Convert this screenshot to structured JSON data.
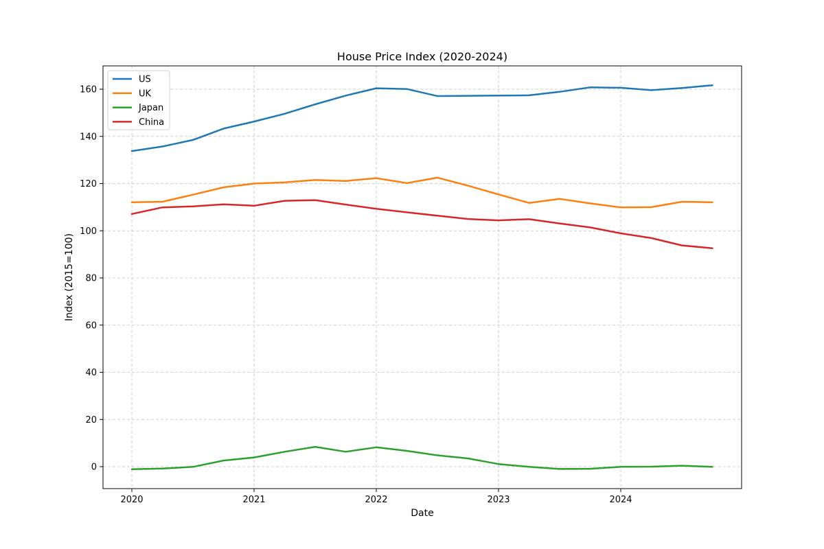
{
  "chart_data": {
    "type": "line",
    "title": "House Price Index (2020-2024)",
    "xlabel": "Date",
    "ylabel": "Index (2015=100)",
    "x": [
      "2020-Q1",
      "2020-Q2",
      "2020-Q3",
      "2020-Q4",
      "2021-Q1",
      "2021-Q2",
      "2021-Q3",
      "2021-Q4",
      "2022-Q1",
      "2022-Q2",
      "2022-Q3",
      "2022-Q4",
      "2023-Q1",
      "2023-Q2",
      "2023-Q3",
      "2023-Q4",
      "2024-Q1",
      "2024-Q2",
      "2024-Q3",
      "2024-Q4"
    ],
    "xticks": [
      "2020",
      "2021",
      "2022",
      "2023",
      "2024"
    ],
    "xlim": [
      "2019-Q4 (approx)",
      "2025-Q1 (approx)"
    ],
    "ylim": [
      -9,
      170
    ],
    "yticks": [
      0,
      20,
      40,
      60,
      80,
      100,
      120,
      140,
      160
    ],
    "grid": true,
    "legend_position": "top-left",
    "series": [
      {
        "name": "US",
        "color": "#1f77b4",
        "values": [
          133.8,
          135.7,
          138.5,
          143.3,
          146.3,
          149.6,
          153.6,
          157.3,
          160.4,
          160.1,
          157.1,
          157.2,
          157.3,
          157.4,
          158.9,
          160.8,
          160.6,
          159.6,
          160.5,
          161.7
        ]
      },
      {
        "name": "UK",
        "color": "#ff7f0e",
        "values": [
          112.1,
          112.3,
          115.3,
          118.4,
          120.0,
          120.5,
          121.5,
          121.1,
          122.3,
          120.2,
          122.5,
          119.1,
          115.4,
          111.8,
          113.5,
          111.6,
          109.9,
          110.0,
          112.3,
          112.1
        ]
      },
      {
        "name": "Japan",
        "color": "#2ca02c",
        "values": [
          -1.1,
          -0.8,
          -0.1,
          2.6,
          3.9,
          6.3,
          8.4,
          6.3,
          8.2,
          6.7,
          4.8,
          3.5,
          1.1,
          -0.1,
          -1.0,
          -0.9,
          -0.1,
          0.0,
          0.4,
          -0.1
        ]
      },
      {
        "name": "China",
        "color": "#d62728",
        "values": [
          107.1,
          109.9,
          110.3,
          111.2,
          110.6,
          112.7,
          113.0,
          111.1,
          109.3,
          107.8,
          106.4,
          105.0,
          104.4,
          104.9,
          103.1,
          101.4,
          98.9,
          96.9,
          93.8,
          92.6
        ]
      }
    ]
  }
}
